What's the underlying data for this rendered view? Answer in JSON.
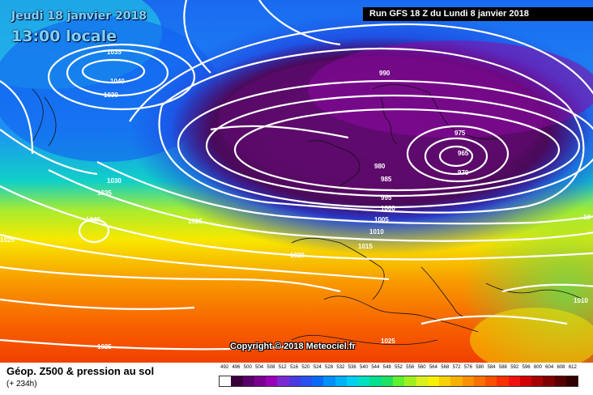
{
  "header": {
    "date": "Jeudi 18 janvier 2018",
    "time": "13:00 locale",
    "run": "Run GFS 18 Z du Lundi 8 janvier 2018"
  },
  "copyright": "Copyright © 2018 Meteociel.fr",
  "footer": {
    "title": "Géop. Z500 & pression au sol",
    "subtitle": "(+ 234h)"
  },
  "isobar_labels": [
    "1035",
    "1040",
    "1030",
    "1030",
    "1035",
    "1040",
    "1025",
    "1025",
    "1020",
    "1025",
    "990",
    "975",
    "965",
    "970",
    "980",
    "985",
    "995",
    "1000",
    "1005",
    "1010",
    "1015",
    "1010",
    "10"
  ],
  "scale": {
    "values": [
      "492",
      "496",
      "500",
      "504",
      "508",
      "512",
      "516",
      "520",
      "524",
      "528",
      "532",
      "536",
      "540",
      "544",
      "548",
      "552",
      "556",
      "560",
      "564",
      "568",
      "572",
      "576",
      "580",
      "584",
      "588",
      "592",
      "596",
      "600",
      "604",
      "608",
      "612"
    ],
    "colors": [
      "#ffffff",
      "#3a003a",
      "#5a006a",
      "#7a0090",
      "#9a00b8",
      "#7a2ad0",
      "#4a3ae0",
      "#2a50f0",
      "#0a6af8",
      "#0090f8",
      "#00b0f8",
      "#00d0f0",
      "#00e0c0",
      "#00e090",
      "#20e060",
      "#60f030",
      "#a0f020",
      "#d8f020",
      "#f8f000",
      "#f8d000",
      "#f8b000",
      "#f89000",
      "#f87000",
      "#f85000",
      "#f83000",
      "#f01010",
      "#d00000",
      "#a80000",
      "#800000",
      "#580000",
      "#300000"
    ]
  },
  "colors": {
    "isoline": "#ffffff",
    "banner_bg": "#000000"
  }
}
